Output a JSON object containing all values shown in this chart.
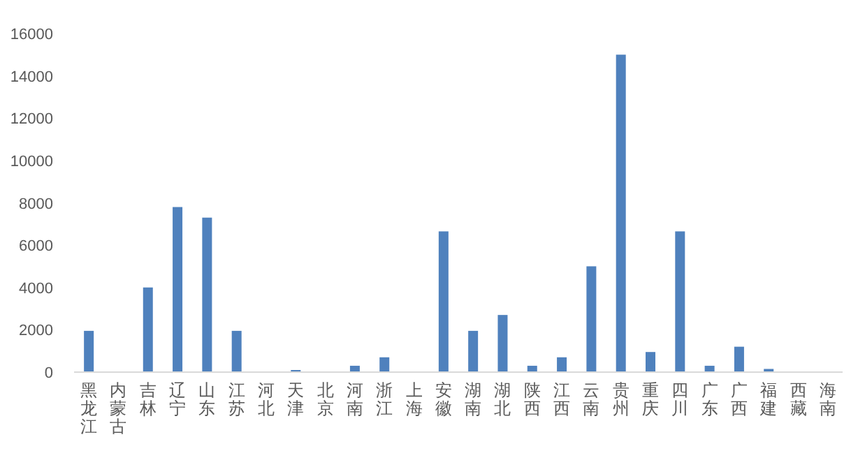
{
  "chart_data": {
    "type": "bar",
    "categories": [
      "黑龙江",
      "内蒙古",
      "吉林",
      "辽宁",
      "山东",
      "江苏",
      "河北",
      "天津",
      "北京",
      "河南",
      "浙江",
      "上海",
      "安徽",
      "湖南",
      "湖北",
      "陕西",
      "江西",
      "云南",
      "贵州",
      "重庆",
      "四川",
      "广东",
      "广西",
      "福建",
      "西藏",
      "海南"
    ],
    "values": [
      1950,
      0,
      4000,
      7800,
      7300,
      1950,
      0,
      100,
      0,
      300,
      700,
      0,
      6650,
      1950,
      2700,
      300,
      700,
      5000,
      15000,
      950,
      6650,
      300,
      1200,
      150,
      0,
      0
    ],
    "color": "#4f81bd",
    "ylim": [
      0,
      16000
    ],
    "yticks": [
      0,
      2000,
      4000,
      6000,
      8000,
      10000,
      12000,
      14000,
      16000
    ],
    "grid": false
  }
}
